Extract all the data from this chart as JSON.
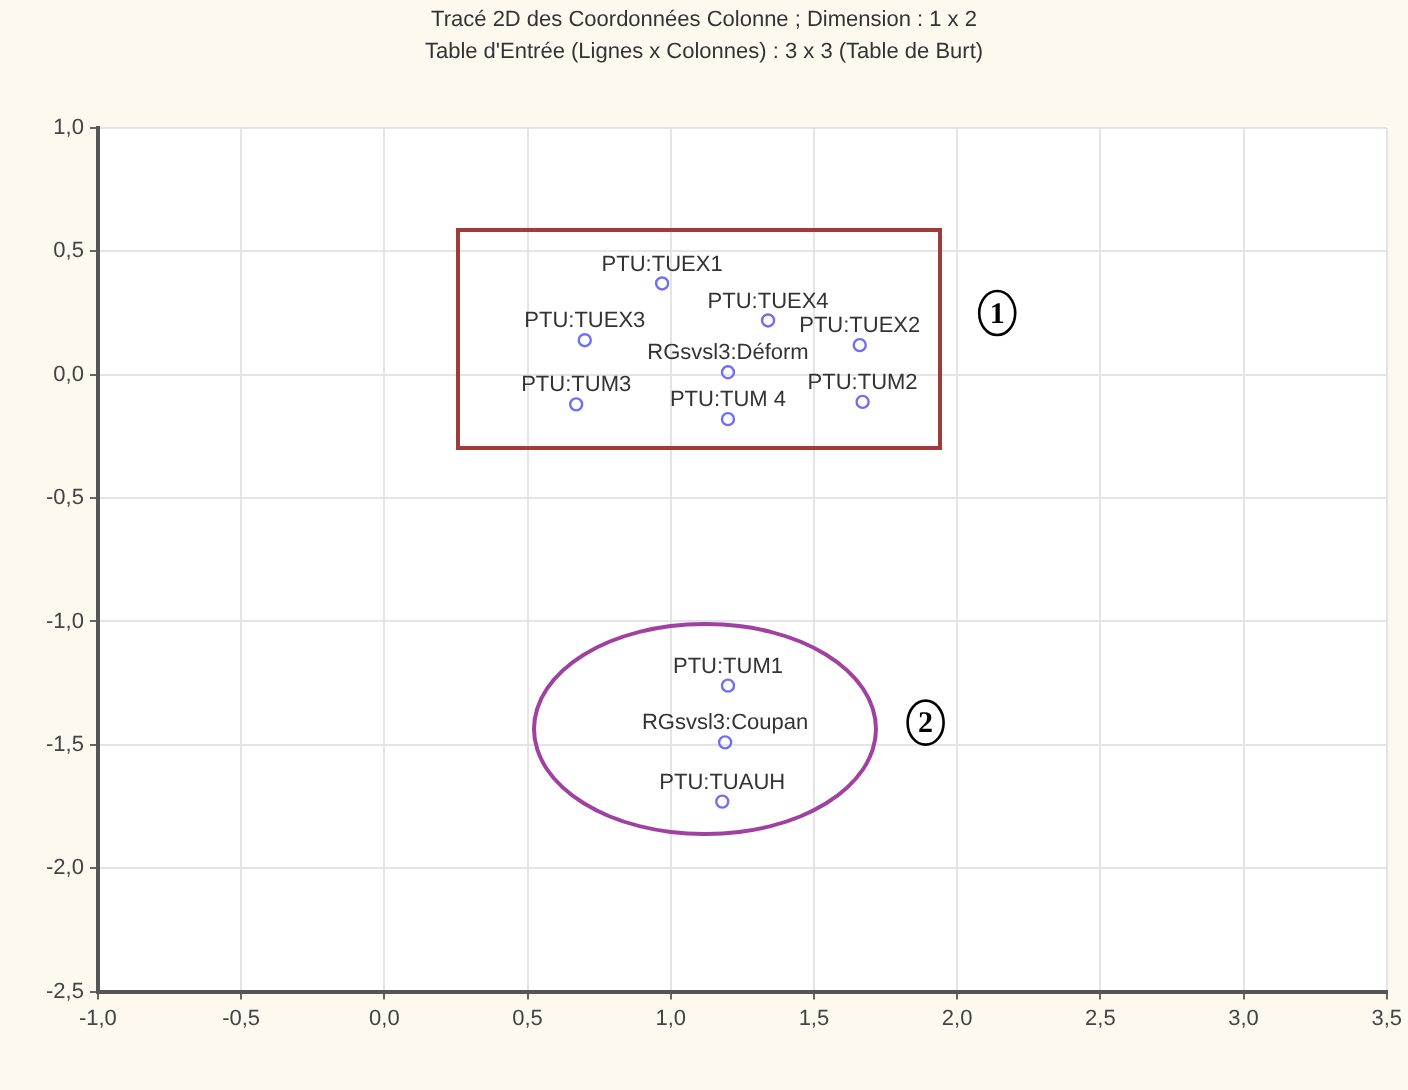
{
  "chart_data": {
    "type": "scatter",
    "title": "Tracé 2D des Coordonnées Colonne ; Dimension :  1 x  2",
    "subtitle": "Table d'Entrée (Lignes x Colonnes) : 3 x 3 (Table de Burt)",
    "series": [
      {
        "color": "#6f6ff5",
        "x": [
          0.97,
          1.34,
          0.7,
          1.66,
          1.2,
          0.67,
          1.67,
          1.2
        ],
        "values": [
          0.37,
          0.22,
          0.14,
          0.12,
          0.01,
          -0.12,
          -0.11,
          -0.18
        ],
        "value_labels": [
          "PTU:TUEX1",
          "PTU:TUEX4",
          "PTU:TUEX3",
          "PTU:TUEX2",
          "RGsvsl3:Déform",
          "PTU:TUM3",
          "PTU:TUM2",
          "PTU:TUM 4"
        ]
      },
      {
        "color": "#6f6ff5",
        "x": [
          1.2,
          1.19,
          1.18
        ],
        "values": [
          -1.26,
          -1.49,
          -1.73
        ],
        "value_labels": [
          "PTU:TUM1",
          "RGsvsl3:Coupan",
          "PTU:TUAUH"
        ]
      }
    ],
    "xlim": [
      -1,
      3.5
    ],
    "xticks": [
      {
        "value": -1,
        "label": "-1,0"
      },
      {
        "value": -0.5,
        "label": "-0,5"
      },
      {
        "value": 0,
        "label": "0,0"
      },
      {
        "value": 0.5,
        "label": "0,5"
      },
      {
        "value": 1,
        "label": "1,0"
      },
      {
        "value": 1.5,
        "label": "1,5"
      },
      {
        "value": 2,
        "label": "2,0"
      },
      {
        "value": 2.5,
        "label": "2,5"
      },
      {
        "value": 3,
        "label": "3,0"
      },
      {
        "value": 3.5,
        "label": "3,5"
      }
    ],
    "ylim": [
      -2.5,
      1
    ],
    "yticks": [
      {
        "value": -2.5,
        "label": "-2,5"
      },
      {
        "value": -2,
        "label": "-2,0"
      },
      {
        "value": -1.5,
        "label": "-1,5"
      },
      {
        "value": -1,
        "label": "-1,0"
      },
      {
        "value": -0.5,
        "label": "-0,5"
      },
      {
        "value": 0,
        "label": "0,0"
      },
      {
        "value": 0.5,
        "label": "0,5"
      },
      {
        "value": 1,
        "label": "1,0"
      }
    ],
    "grid": true,
    "marker": "circle",
    "legend": false,
    "annotations": [
      {
        "text": "1",
        "x": 2.14,
        "y": 0.25
      },
      {
        "text": "2",
        "x": 1.89,
        "y": -1.41
      }
    ]
  }
}
